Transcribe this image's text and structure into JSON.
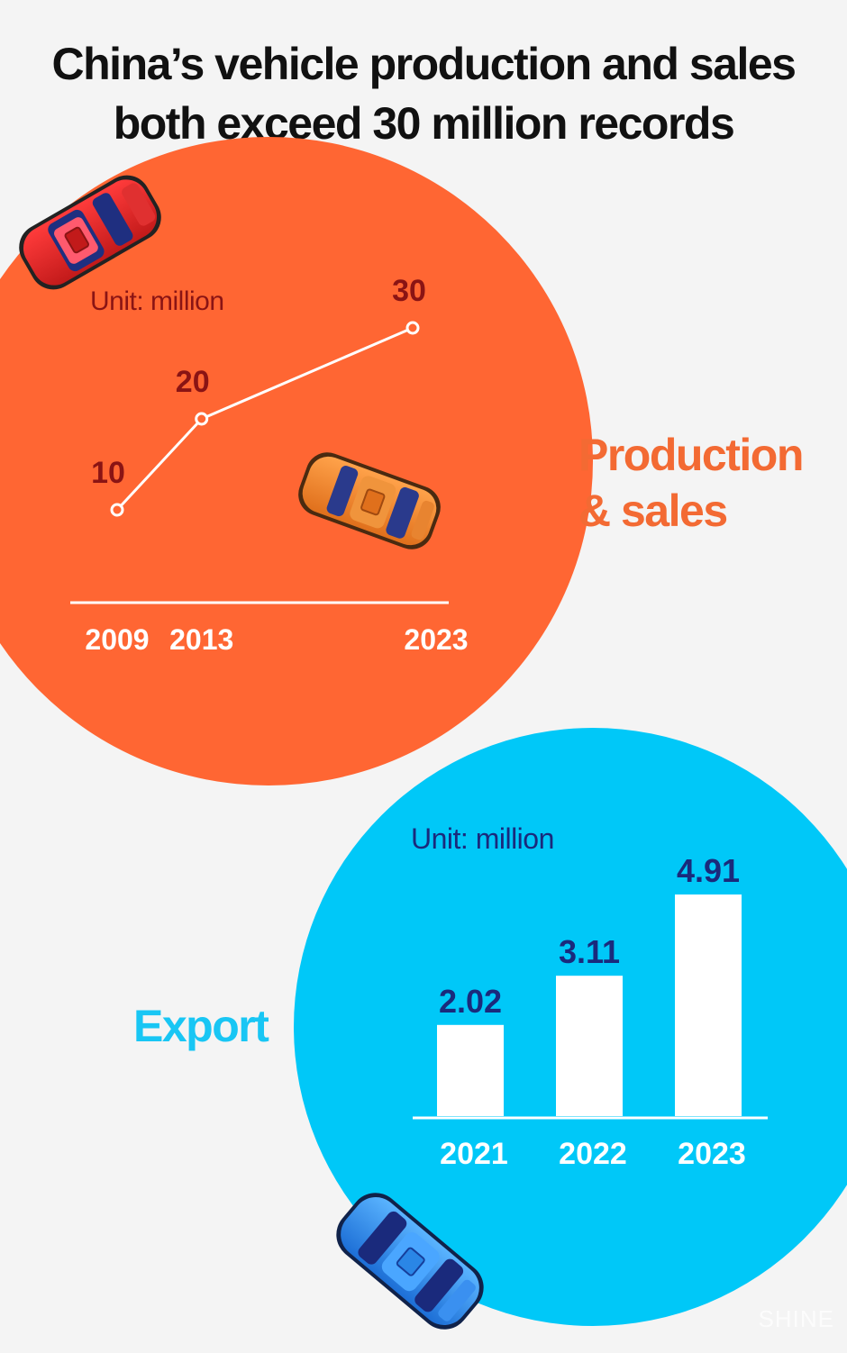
{
  "title": {
    "line1": "China’s vehicle production and sales",
    "line2": "both exceed 30 million records"
  },
  "labels": {
    "production": {
      "line1": "Production",
      "line2": "& sales"
    },
    "export": "Export"
  },
  "watermark": "SHINE",
  "colors": {
    "orange": "#ff6633",
    "orange_text": "#f36a33",
    "dark_red": "#8a1414",
    "blue": "#00c8f8",
    "blue_text": "#18c6f4",
    "navy": "#1a2a7c",
    "background": "#f4f4f4",
    "white": "#ffffff"
  },
  "chart_data": [
    {
      "type": "line",
      "unit_label": "Unit: million",
      "x": [
        "2009",
        "2013",
        "2023"
      ],
      "values": [
        10,
        20,
        30
      ],
      "data_labels": [
        "10",
        "20",
        "30"
      ],
      "grid": false
    },
    {
      "type": "bar",
      "unit_label": "Unit: million",
      "categories": [
        "2021",
        "2022",
        "2023"
      ],
      "values": [
        2.02,
        3.11,
        4.91
      ],
      "data_labels": [
        "2.02",
        "3.11",
        "4.91"
      ],
      "ylim": [
        0,
        4.91
      ],
      "grid": false
    }
  ]
}
